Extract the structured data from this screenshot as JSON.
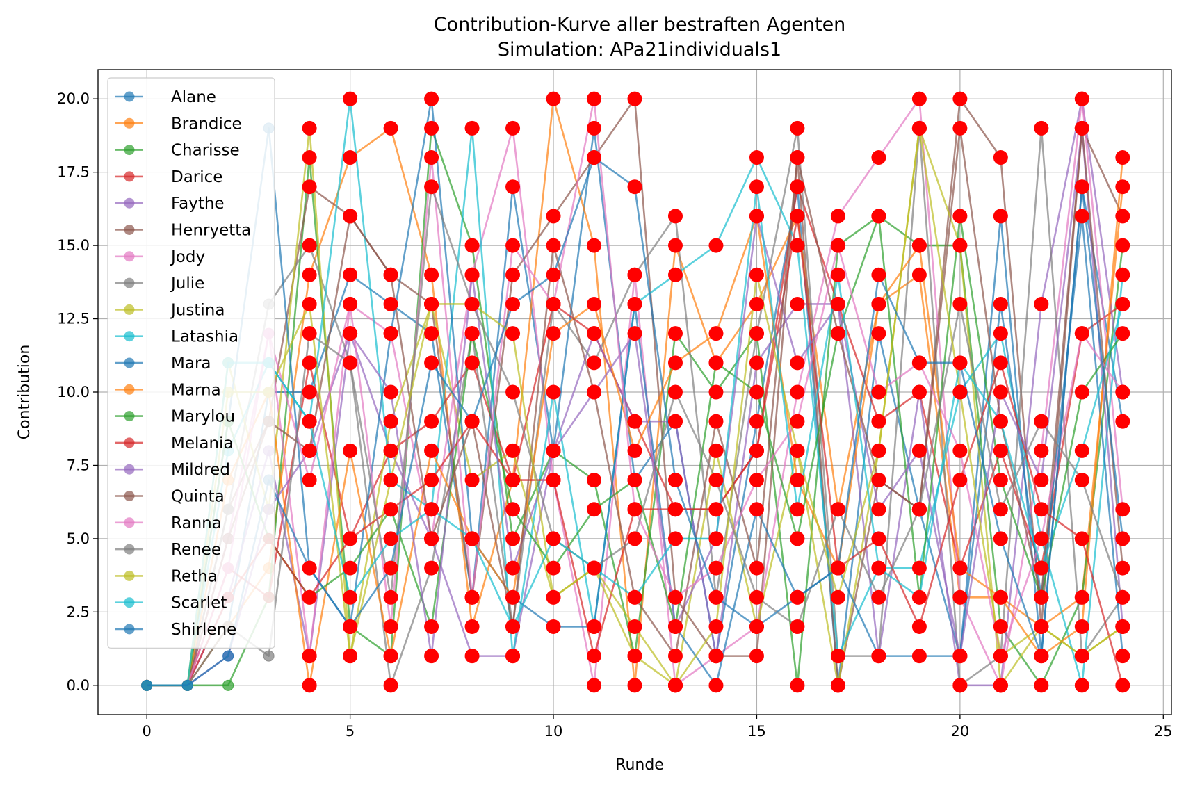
{
  "chart_data": {
    "type": "line",
    "title": "Contribution-Kurve aller bestraften Agenten",
    "subtitle": "Simulation: APa21individuals1",
    "xlabel": "Runde",
    "ylabel": "Contribution",
    "xlim": [
      -1.2,
      25.2
    ],
    "ylim": [
      -1.0,
      21.0
    ],
    "xticks": [
      0,
      5,
      10,
      15,
      20,
      25
    ],
    "xtick_labels": [
      "0",
      "5",
      "10",
      "15",
      "20",
      "25"
    ],
    "yticks": [
      0,
      2.5,
      5,
      7.5,
      10,
      12.5,
      15,
      17.5,
      20
    ],
    "ytick_labels": [
      "0.0",
      "2.5",
      "5.0",
      "7.5",
      "10.0",
      "12.5",
      "15.0",
      "17.5",
      "20.0"
    ],
    "grid": true,
    "legend_position": "upper-left",
    "punishment_marker_color": "#ff0000",
    "x": [
      0,
      1,
      2,
      3,
      4,
      5,
      6,
      7,
      8,
      9,
      10,
      11,
      12,
      13,
      14,
      15,
      16,
      17,
      18,
      19,
      20,
      21,
      22,
      23,
      24
    ],
    "series": [
      {
        "name": "Alane",
        "color": "#1f77b4",
        "values": [
          0,
          0,
          2,
          10,
          10,
          14,
          13,
          12,
          3,
          17,
          8,
          19,
          7,
          9,
          1,
          9,
          17,
          0,
          12,
          6,
          1,
          16,
          1,
          17,
          9
        ]
      },
      {
        "name": "Brandice",
        "color": "#ff7f0e",
        "values": [
          0,
          0,
          2,
          4,
          14,
          18,
          19,
          14,
          2,
          7,
          20,
          15,
          0,
          15,
          11,
          13,
          16,
          6,
          13,
          14,
          3,
          3,
          2,
          3,
          17
        ]
      },
      {
        "name": "Charisse",
        "color": "#2ca02c",
        "values": [
          0,
          0,
          0,
          3,
          18,
          2,
          1,
          19,
          15,
          5,
          8,
          7,
          1,
          12,
          10,
          12,
          0,
          15,
          16,
          15,
          15,
          2,
          0,
          3,
          15
        ]
      },
      {
        "name": "Darice",
        "color": "#d62728",
        "values": [
          0,
          0,
          4,
          3,
          11,
          5,
          8,
          9,
          11,
          7,
          13,
          12,
          9,
          6,
          6,
          8,
          17,
          13,
          9,
          10,
          4,
          8,
          4,
          12,
          13
        ]
      },
      {
        "name": "Faythe",
        "color": "#9467bd",
        "values": [
          0,
          0,
          3,
          8,
          1,
          12,
          8,
          5,
          1,
          1,
          8,
          12,
          9,
          9,
          1,
          11,
          13,
          13,
          1,
          10,
          0,
          0,
          13,
          20,
          10
        ]
      },
      {
        "name": "Henryetta",
        "color": "#8c564b",
        "values": [
          0,
          0,
          6,
          9,
          17,
          16,
          14,
          13,
          3,
          14,
          16,
          18,
          20,
          3,
          1,
          1,
          18,
          0,
          7,
          6,
          20,
          18,
          2,
          19,
          16
        ]
      },
      {
        "name": "Jody",
        "color": "#e377c2",
        "values": [
          0,
          0,
          5,
          12,
          1,
          13,
          12,
          5,
          14,
          19,
          7,
          0,
          14,
          0,
          1,
          2,
          10,
          16,
          18,
          20,
          3,
          0,
          8,
          20,
          6
        ]
      },
      {
        "name": "Julie",
        "color": "#7f7f7f",
        "values": [
          0,
          0,
          6,
          13,
          15,
          11,
          0,
          4,
          12,
          2,
          13,
          11,
          14,
          16,
          3,
          12,
          19,
          1,
          1,
          19,
          0,
          1,
          19,
          1,
          3
        ]
      },
      {
        "name": "Justina",
        "color": "#bcbd22",
        "values": [
          0,
          0,
          11,
          6,
          19,
          1,
          9,
          13,
          7,
          8,
          3,
          4,
          1,
          0,
          8,
          2,
          8,
          0,
          8,
          19,
          15,
          0,
          2,
          1,
          2
        ]
      },
      {
        "name": "Latashia",
        "color": "#17becf",
        "values": [
          0,
          0,
          8,
          11,
          9,
          20,
          7,
          6,
          19,
          1,
          10,
          2,
          13,
          14,
          15,
          18,
          15,
          1,
          4,
          4,
          10,
          12,
          5,
          0,
          14
        ]
      },
      {
        "name": "Mara",
        "color": "#1f77b4",
        "values": [
          0,
          0,
          9,
          19,
          4,
          2,
          12,
          20,
          5,
          3,
          2,
          2,
          13,
          2,
          0,
          6,
          3,
          4,
          1,
          1,
          1,
          13,
          3,
          16,
          1
        ]
      },
      {
        "name": "Marna",
        "color": "#ff7f0e",
        "values": [
          0,
          0,
          7,
          10,
          0,
          8,
          1,
          8,
          5,
          3,
          12,
          13,
          8,
          11,
          12,
          16,
          7,
          4,
          13,
          15,
          4,
          3,
          1,
          2,
          18
        ]
      },
      {
        "name": "Marylou",
        "color": "#2ca02c",
        "values": [
          0,
          0,
          9,
          5,
          3,
          4,
          6,
          2,
          12,
          6,
          4,
          6,
          7,
          2,
          11,
          10,
          5,
          12,
          16,
          3,
          16,
          7,
          3,
          10,
          12
        ]
      },
      {
        "name": "Melania",
        "color": "#d62728",
        "values": [
          0,
          0,
          3,
          5,
          3,
          5,
          6,
          7,
          9,
          7,
          7,
          1,
          6,
          6,
          6,
          8,
          16,
          4,
          5,
          2,
          7,
          11,
          6,
          5,
          0
        ]
      },
      {
        "name": "Mildred",
        "color": "#9467bd",
        "values": [
          0,
          0,
          1,
          6,
          8,
          12,
          10,
          1,
          14,
          4,
          8,
          10,
          12,
          2,
          5,
          16,
          11,
          13,
          6,
          8,
          1,
          10,
          7,
          19,
          2
        ]
      },
      {
        "name": "Quinta",
        "color": "#8c564b",
        "values": [
          0,
          0,
          5,
          9,
          8,
          16,
          14,
          5,
          9,
          2,
          15,
          10,
          3,
          1,
          9,
          4,
          18,
          12,
          7,
          6,
          19,
          9,
          3,
          19,
          4
        ]
      },
      {
        "name": "Ranna",
        "color": "#e377c2",
        "values": [
          0,
          0,
          4,
          12,
          7,
          13,
          2,
          18,
          3,
          15,
          13,
          20,
          6,
          3,
          4,
          7,
          9,
          15,
          10,
          11,
          8,
          1,
          5,
          12,
          10
        ]
      },
      {
        "name": "Renee",
        "color": "#7f7f7f",
        "values": [
          0,
          0,
          2,
          1,
          12,
          11,
          3,
          17,
          13,
          10,
          5,
          4,
          5,
          10,
          7,
          3,
          2,
          6,
          3,
          6,
          13,
          6,
          9,
          7,
          3
        ]
      },
      {
        "name": "Retha",
        "color": "#bcbd22",
        "values": [
          0,
          0,
          10,
          10,
          13,
          1,
          7,
          13,
          13,
          12,
          3,
          4,
          2,
          0,
          2,
          14,
          8,
          3,
          8,
          19,
          10,
          1,
          2,
          1,
          2
        ]
      },
      {
        "name": "Scarlet",
        "color": "#17becf",
        "values": [
          0,
          0,
          11,
          11,
          9,
          3,
          5,
          6,
          5,
          2,
          5,
          4,
          3,
          5,
          5,
          17,
          6,
          14,
          4,
          3,
          11,
          9,
          4,
          8,
          13
        ]
      },
      {
        "name": "Shirlene",
        "color": "#1f77b4",
        "values": [
          0,
          0,
          1,
          7,
          4,
          2,
          4,
          11,
          9,
          13,
          14,
          18,
          17,
          7,
          3,
          2,
          3,
          4,
          14,
          11,
          11,
          5,
          1,
          17,
          5
        ]
      }
    ]
  }
}
